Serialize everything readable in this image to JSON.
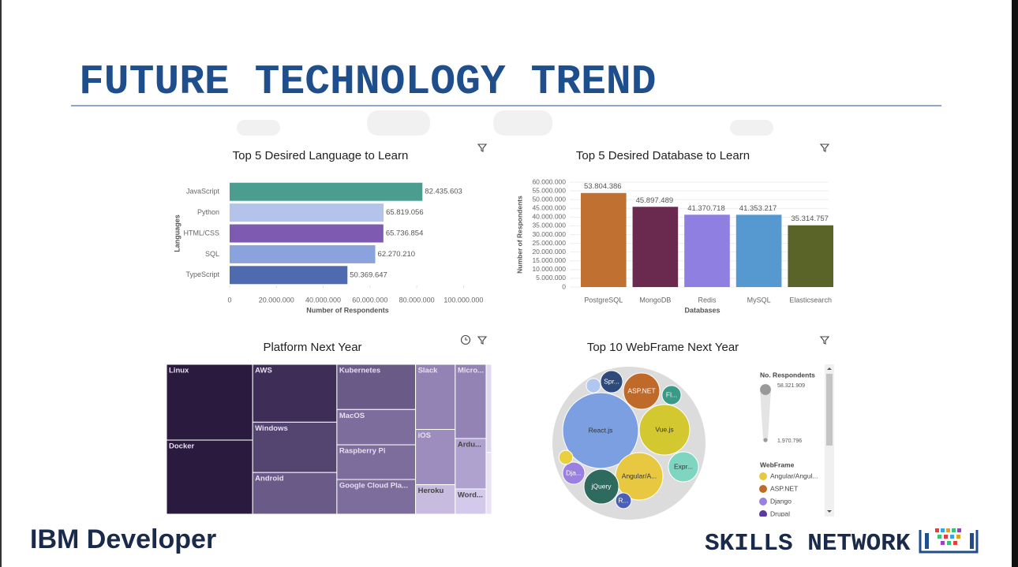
{
  "header": {
    "title": "FUTURE TECHNOLOGY TREND"
  },
  "footer": {
    "left": "IBM Developer",
    "right": "SKILLS NETWORK"
  },
  "chart_data": [
    {
      "type": "bar",
      "horizontal": true,
      "title": "Top 5 Desired Language to Learn",
      "x_label": "Number of Respondents",
      "y_label": "Languages",
      "categories": [
        "JavaScript",
        "Python",
        "HTML/CSS",
        "SQL",
        "TypeScript"
      ],
      "values": [
        82435603,
        65819056,
        65736854,
        62270210,
        50369647
      ],
      "value_labels": [
        "82.435.603",
        "65.819.056",
        "65.736.854",
        "62.270.210",
        "50.369.647"
      ],
      "colors": [
        "#4a9d8f",
        "#b3c3ea",
        "#7e5bb0",
        "#8aa3dc",
        "#4f6bb0"
      ],
      "xlim": [
        0,
        110000000
      ],
      "xticks": [
        0,
        {
          "value": 20000000,
          "label": "20.000.000"
        },
        {
          "value": 40000000,
          "label": "40.000.000"
        },
        {
          "value": 60000000,
          "label": "60.000.000"
        },
        {
          "value": 80000000,
          "label": "80.000.000"
        },
        {
          "value": 100000000,
          "label": "100.000.000"
        }
      ]
    },
    {
      "type": "bar",
      "horizontal": false,
      "title": "Top 5 Desired Database to Learn",
      "x_label": "Databases",
      "y_label": "Number of Respondents",
      "categories": [
        "PostgreSQL",
        "MongoDB",
        "Redis",
        "MySQL",
        "Elasticsearch"
      ],
      "values": [
        53804386,
        45897489,
        41370718,
        41353217,
        35314757
      ],
      "value_labels": [
        "53.804.386",
        "45.897.489",
        "41.370.718",
        "41.353.217",
        "35.314.757"
      ],
      "colors": [
        "#c07030",
        "#6a2a50",
        "#8e7fe0",
        "#5599d0",
        "#5a6428"
      ],
      "grid": true,
      "ylim": [
        0,
        60000000
      ],
      "yticks": [
        0,
        {
          "value": 5000000,
          "label": "5.000.000"
        },
        {
          "value": 10000000,
          "label": "10.000.000"
        },
        {
          "value": 15000000,
          "label": "15.000.000"
        },
        {
          "value": 20000000,
          "label": "20.000.000"
        },
        {
          "value": 25000000,
          "label": "25.000.000"
        },
        {
          "value": 30000000,
          "label": "30.000.000"
        },
        {
          "value": 35000000,
          "label": "35.000.000"
        },
        {
          "value": 40000000,
          "label": "40.000.000"
        },
        {
          "value": 45000000,
          "label": "45.000.000"
        },
        {
          "value": 50000000,
          "label": "50.000.000"
        },
        {
          "value": 55000000,
          "label": "55.000.000"
        },
        {
          "value": 60000000,
          "label": "60.000.000"
        }
      ]
    },
    {
      "type": "treemap",
      "title": "Platform Next Year",
      "categories": [
        "Linux",
        "Docker",
        "AWS",
        "Windows",
        "Android",
        "Kubernetes",
        "MacOS",
        "Raspberry Pi",
        "Google Cloud Pla...",
        "Slack",
        "Micro...",
        "iOS",
        "Ardu...",
        "Heroku",
        "Word...",
        null,
        null
      ],
      "values": [
        13.4,
        13.1,
        10.0,
        8.7,
        7.2,
        7.3,
        5.7,
        5.6,
        5.6,
        5.3,
        4.7,
        4.5,
        3.2,
        2.4,
        1.6,
        1.0,
        0.7
      ],
      "colors": [
        "#2a1a3e",
        "#2a1a3e",
        "#3e2d56",
        "#544470",
        "#6a5a88",
        "#6a5a88",
        "#7d6d9c",
        "#7d6d9c",
        "#7d6d9c",
        "#9383b5",
        "#9383b5",
        "#9d8dbe",
        "#b0a2cf",
        "#c7bbe0",
        "#d3c9ea",
        "#e0d8f0",
        "#e8e2f4"
      ]
    },
    {
      "type": "bubble",
      "title": "Top 10 WebFrame Next Year",
      "categories": [
        "React.js",
        "Vue.js",
        "Angular/A...",
        "ASP.NET",
        "jQuery",
        "Expr...",
        "Spr...",
        "Fl...",
        "Dja...",
        "R...",
        null,
        null
      ],
      "values": [
        58321909,
        25900000,
        22800000,
        13400000,
        12300000,
        9200000,
        5000000,
        3700000,
        5000000,
        2500000,
        2100000,
        1970796
      ],
      "colors": [
        "#7b9fe0",
        "#d4c830",
        "#e8c840",
        "#c06a2a",
        "#2e6b5e",
        "#7ed6c0",
        "#2d4a7a",
        "#3a9a88",
        "#9a80e0",
        "#4a60b8",
        "#b0c8f0",
        "#e8d040"
      ],
      "size_legend": {
        "title": "No. Respondents",
        "max": {
          "value": 58321909,
          "label": "58.321.909"
        },
        "min": {
          "value": 1970796,
          "label": "1.970.796"
        }
      },
      "legend": {
        "title": "WebFrame",
        "items": [
          {
            "name": "Angular/Angul...",
            "color": "#e8c840"
          },
          {
            "name": "ASP.NET",
            "color": "#c06a2a"
          },
          {
            "name": "Django",
            "color": "#9a80e0"
          },
          {
            "name": "Drupal",
            "color": "#5a3aa0"
          }
        ]
      }
    }
  ]
}
